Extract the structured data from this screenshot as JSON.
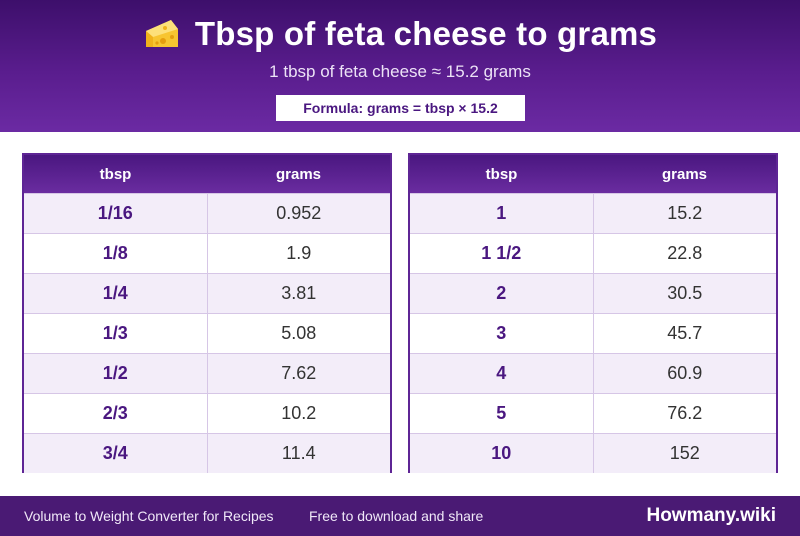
{
  "header": {
    "icon": "cheese-icon",
    "title": "Tbsp of feta cheese to grams",
    "subtitle": "1 tbsp of feta cheese ≈ 15.2 grams",
    "formula": "Formula: grams = tbsp × 15.2"
  },
  "tables": {
    "left": {
      "col1": "tbsp",
      "col2": "grams",
      "rows": [
        {
          "tbsp": "1/16",
          "grams": "0.952"
        },
        {
          "tbsp": "1/8",
          "grams": "1.9"
        },
        {
          "tbsp": "1/4",
          "grams": "3.81"
        },
        {
          "tbsp": "1/3",
          "grams": "5.08"
        },
        {
          "tbsp": "1/2",
          "grams": "7.62"
        },
        {
          "tbsp": "2/3",
          "grams": "10.2"
        },
        {
          "tbsp": "3/4",
          "grams": "11.4"
        }
      ]
    },
    "right": {
      "col1": "tbsp",
      "col2": "grams",
      "rows": [
        {
          "tbsp": "1",
          "grams": "15.2"
        },
        {
          "tbsp": "1 1/2",
          "grams": "22.8"
        },
        {
          "tbsp": "2",
          "grams": "30.5"
        },
        {
          "tbsp": "3",
          "grams": "45.7"
        },
        {
          "tbsp": "4",
          "grams": "60.9"
        },
        {
          "tbsp": "5",
          "grams": "76.2"
        },
        {
          "tbsp": "10",
          "grams": "152"
        }
      ]
    }
  },
  "footer": {
    "left_text": "Volume to Weight Converter for Recipes",
    "mid_text": "Free to download and share",
    "brand": "Howmany.wiki"
  },
  "colors": {
    "accent": "#5a1d8e",
    "footer": "#4a1a74",
    "row_alt": "#f3edf9"
  }
}
